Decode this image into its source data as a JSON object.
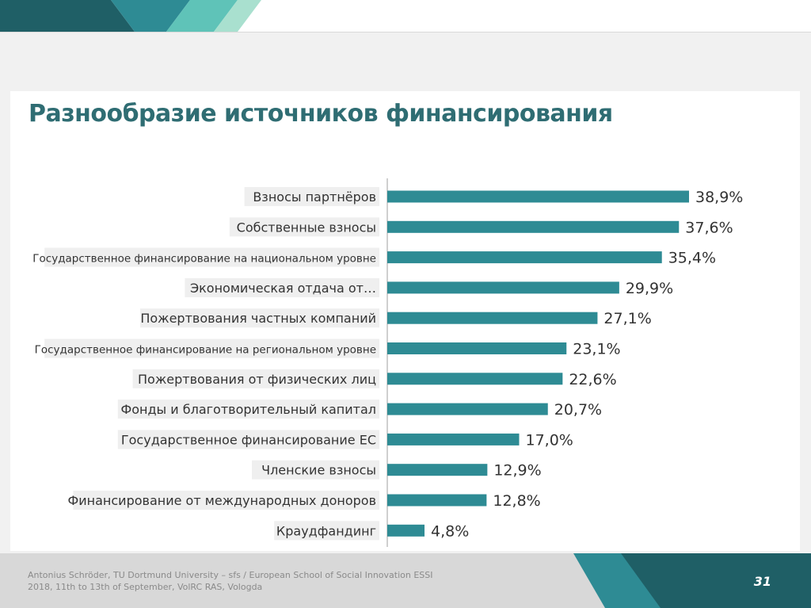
{
  "slide": {
    "title": "Разнообразие источников финансирования",
    "footer_line1": "Antonius Schröder, TU Dortmund University – sfs / European School of Social Innovation ESSI",
    "footer_line2": "2018, 11th to 13th of September, VolRC RAS, Vologda",
    "page_number": "31"
  },
  "colors": {
    "bar": "#2e8b94",
    "title": "#2f6d73",
    "label_bg": "#efefef"
  },
  "chart_data": {
    "type": "bar",
    "orientation": "horizontal",
    "title": "",
    "xlabel": "",
    "ylabel": "",
    "xlim": [
      0,
      40
    ],
    "grid": false,
    "categories": [
      "Взносы партнёров",
      "Собственные взносы",
      "Государственное финансирование на национальном уровне",
      "Экономическая отдача от…",
      "Пожертвования частных компаний",
      "Государственное финансирование на региональном уровне",
      "Пожертвования от физических лиц",
      "Фонды и благотворительный капитал",
      "Государственное финансирование ЕС",
      "Членские взносы",
      "Финансирование от международных доноров",
      "Краудфандинг"
    ],
    "values": [
      38.9,
      37.6,
      35.4,
      29.9,
      27.1,
      23.1,
      22.6,
      20.7,
      17.0,
      12.9,
      12.8,
      4.8
    ],
    "value_labels": [
      "38,9%",
      "37,6%",
      "35,4%",
      "29,9%",
      "27,1%",
      "23,1%",
      "22,6%",
      "20,7%",
      "17,0%",
      "12,9%",
      "12,8%",
      "4,8%"
    ]
  }
}
